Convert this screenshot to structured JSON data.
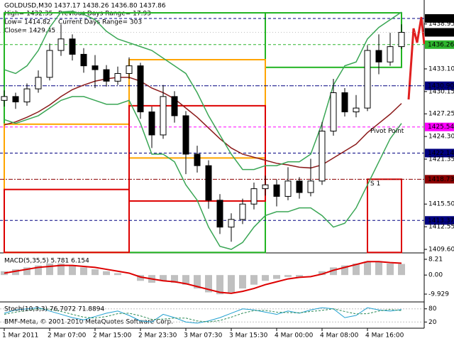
{
  "header": {
    "lines": [
      "GOLDUSD,M30 1437.17 1438.26 1436.80 1437.86",
      "High= 1432.35",
      "Previous Days Range= 17.93",
      "Low= 1414.82",
      "Current Days Range= 303",
      "Close= 1429.45"
    ],
    "copyright": "BMF-Meta, © 2001-2010 MetaQuotes Software Corp."
  },
  "chart_data": [
    {
      "type": "candlestick",
      "categories": [
        "1 Mar 2011",
        null,
        null,
        null,
        "2 Mar 07:00",
        null,
        null,
        null,
        "2 Mar 15:00",
        null,
        null,
        null,
        "2 Mar 23:30",
        null,
        null,
        null,
        "3 Mar 07:30",
        null,
        null,
        null,
        "3 Mar 15:30",
        null,
        null,
        null,
        "4 Mar 00:00",
        null,
        null,
        null,
        "4 Mar 08:00",
        null,
        null,
        null,
        "4 Mar 16:00",
        null,
        null,
        null
      ],
      "open": [
        1429.0,
        1429.5,
        1428.8,
        1430.5,
        1432.0,
        1435.5,
        1437.0,
        1435.0,
        1433.5,
        1433.0,
        1431.5,
        1432.5,
        1433.5,
        1427.5,
        1424.5,
        1429.5,
        1427.0,
        1422.0,
        1420.5,
        1416.0,
        1412.5,
        1413.5,
        1415.5,
        1417.5,
        1418.0,
        1416.5,
        1418.5,
        1417.0,
        1418.5,
        1425.0,
        1430.0,
        1427.5,
        1428.0,
        1435.5,
        1434.0,
        1436.0
      ],
      "high": [
        1430.3,
        1430.0,
        1431.2,
        1432.9,
        1436.4,
        1438.9,
        1437.6,
        1435.8,
        1434.9,
        1433.6,
        1433.4,
        1434.6,
        1433.9,
        1428.2,
        1431.0,
        1430.2,
        1427.6,
        1423.1,
        1421.2,
        1416.8,
        1414.3,
        1416.2,
        1418.3,
        1419.2,
        1418.7,
        1420.3,
        1419.0,
        1421.4,
        1426.2,
        1431.8,
        1430.6,
        1429.7,
        1436.2,
        1437.6,
        1437.8,
        1438.9
      ],
      "low": [
        1428.2,
        1427.9,
        1428.3,
        1430.0,
        1431.6,
        1434.8,
        1434.2,
        1432.6,
        1430.6,
        1430.8,
        1431.0,
        1431.8,
        1426.6,
        1422.8,
        1424.0,
        1426.1,
        1419.4,
        1419.6,
        1414.9,
        1411.6,
        1410.6,
        1412.9,
        1414.8,
        1416.6,
        1415.2,
        1416.0,
        1416.2,
        1416.5,
        1418.0,
        1424.4,
        1426.9,
        1426.8,
        1427.6,
        1432.4,
        1433.5,
        1435.7
      ],
      "close": [
        1429.5,
        1428.8,
        1430.5,
        1432.0,
        1435.5,
        1437.0,
        1435.0,
        1433.5,
        1433.0,
        1431.5,
        1432.5,
        1433.5,
        1427.5,
        1424.5,
        1429.5,
        1427.0,
        1422.0,
        1420.5,
        1416.0,
        1412.5,
        1413.5,
        1415.5,
        1417.5,
        1418.0,
        1416.5,
        1418.5,
        1417.0,
        1418.5,
        1425.0,
        1430.0,
        1427.5,
        1428.0,
        1435.5,
        1434.0,
        1436.0,
        1437.86
      ],
      "overlays": [
        {
          "color": "#8b1a1a",
          "values": [
            1425.8,
            1426.2,
            1426.8,
            1427.5,
            1428.4,
            1429.5,
            1430.4,
            1431.0,
            1431.5,
            1431.8,
            1432.0,
            1432.0,
            1431.5,
            1430.6,
            1430.0,
            1429.2,
            1428.0,
            1426.8,
            1425.4,
            1424.0,
            1422.8,
            1422.0,
            1421.6,
            1421.2,
            1420.8,
            1420.6,
            1420.3,
            1420.2,
            1420.6,
            1421.5,
            1422.4,
            1423.3,
            1424.8,
            1426.0,
            1427.2,
            1428.6
          ]
        },
        {
          "color": "#3aa655",
          "values": [
            1433,
            1432.5,
            1433.5,
            1435.5,
            1438.5,
            1440.5,
            1440.6,
            1440.2,
            1439.5,
            1438,
            1437,
            1436.5,
            1436,
            1435.5,
            1434.5,
            1433.5,
            1432.5,
            1430,
            1427,
            1424.5,
            1422,
            1420,
            1420,
            1420.5,
            1420.5,
            1421,
            1421,
            1422,
            1426,
            1431,
            1433.5,
            1434,
            1437,
            1438.5,
            1439.5,
            1440.5
          ]
        },
        {
          "color": "#3aa655",
          "values": [
            1426.5,
            1426,
            1426.5,
            1427,
            1428,
            1429,
            1429.5,
            1429.5,
            1429,
            1428.5,
            1428.5,
            1429,
            1426,
            1422,
            1422,
            1421,
            1418,
            1416,
            1412.5,
            1410,
            1409.6,
            1410.5,
            1412.5,
            1414,
            1414.5,
            1414.5,
            1415,
            1415,
            1414,
            1412.5,
            1413,
            1415,
            1418,
            1421,
            1424,
            1426
          ]
        }
      ],
      "boxes": [
        {
          "color": "#22b422",
          "start": 0,
          "end": 23,
          "high": 1440.4,
          "low": 1409.2
        },
        {
          "color": "#22b422",
          "start": 23,
          "end": 35,
          "high": 1440.4,
          "low": 1433.3
        },
        {
          "color": "#ffa500",
          "start": 0,
          "end": 11,
          "high": 1425.9,
          "low": 1409.2
        },
        {
          "color": "#ffa500",
          "start": 11,
          "end": 23,
          "high": 1434.3,
          "low": 1421.5
        },
        {
          "color": "#dd0000",
          "start": 0,
          "end": 11,
          "high": 1417.4,
          "low": 1409.2
        },
        {
          "color": "#dd0000",
          "start": 11,
          "end": 23,
          "high": 1428.3,
          "low": 1415.9
        },
        {
          "color": "#dd0000",
          "start": 32,
          "end": 35,
          "high": 1418.73,
          "low": 1409.2
        }
      ],
      "levels": [
        {
          "value": 1439.67,
          "color": "#000000",
          "text_color": "#ffffff",
          "line": "#000080",
          "dash": "4 3"
        },
        {
          "value": 1437.86,
          "color": "#000000",
          "text_color": "#ffffff",
          "line": "#c0c0c0",
          "dash": "1 3"
        },
        {
          "value": 1436.26,
          "color": "#2db52d",
          "text_color": "#000000",
          "line": "#2db52d",
          "dash": "4 3"
        },
        {
          "value": 1430.9,
          "label": "1430.90",
          "color": "#000080",
          "text_color": "#ffffff",
          "line": "#000080",
          "dash": "6 2 2 2"
        },
        {
          "value": 1425.54,
          "color": "#ff00ff",
          "text_color": "#ffffff",
          "line": "#ff00ff",
          "dash": "4 3",
          "annotation": "Pivot Point",
          "annotation_color": "#e0a040"
        },
        {
          "value": 1422.14,
          "color": "#000080",
          "text_color": "#ffffff",
          "line": "#000080",
          "dash": "4 3"
        },
        {
          "value": 1418.73,
          "color": "#8b0000",
          "text_color": "#ffffff",
          "line": "#8b0000",
          "dash": "6 2 2 2",
          "annotation": "S 1",
          "annotation_color": "#e0a040"
        },
        {
          "value": 1413.37,
          "color": "#000080",
          "text_color": "#ffffff",
          "line": "#000080",
          "dash": "4 3"
        }
      ],
      "ylim": [
        1409.14,
        1442.07
      ],
      "yticks": [
        1438.95,
        {
          "value": 1433.1,
          "label": "1433.10"
        },
        1430.15,
        1427.25,
        {
          "value": 1424.3,
          "label": "1424.30"
        },
        1421.35,
        {
          "value": 1415.5,
          "label": "1415.50"
        },
        1412.55,
        {
          "value": 1409.6,
          "label": "1409.60"
        }
      ]
    },
    {
      "type": "bar",
      "title": "MACD(5,35,5) 5.781 6.154",
      "color": "#c0c0c0",
      "signal_color": "#dd0000",
      "values": [
        2,
        3,
        4,
        5,
        6,
        6,
        5,
        4,
        3,
        2,
        1,
        0,
        -3,
        -4,
        -3,
        -4,
        -5,
        -7,
        -9,
        -10,
        -9,
        -7,
        -5,
        -3,
        -2,
        -1,
        -1,
        0,
        2,
        4,
        5,
        6,
        7,
        7,
        6,
        5.781
      ],
      "signal": [
        1,
        2,
        3,
        4,
        4.5,
        5,
        5,
        4.5,
        4,
        3,
        2,
        1,
        -1,
        -2,
        -3,
        -3.5,
        -4.5,
        -6,
        -7.5,
        -9,
        -9.5,
        -8.5,
        -7,
        -5,
        -3.5,
        -2,
        -1.2,
        -0.8,
        0.5,
        2.5,
        4,
        5.5,
        7,
        7,
        6.5,
        6.154
      ],
      "ylim": [
        -14.0,
        11.17
      ],
      "yticks": [
        8.21,
        {
          "value": 0,
          "label": "0.00"
        },
        -9.929
      ]
    },
    {
      "type": "line",
      "title": "Stoch(10,3,3) 76.7072 71.8894",
      "series": [
        {
          "color": "#20a0d0",
          "dash": "",
          "values": [
            60,
            75,
            80,
            85,
            70,
            55,
            40,
            30,
            45,
            60,
            70,
            50,
            25,
            20,
            55,
            40,
            20,
            15,
            25,
            40,
            60,
            80,
            75,
            65,
            55,
            70,
            60,
            75,
            85,
            80,
            40,
            50,
            85,
            75,
            70,
            76.7072
          ]
        },
        {
          "color": "#2e8b57",
          "dash": "3 2",
          "values": [
            55,
            65,
            72,
            80,
            78,
            68,
            55,
            42,
            38,
            45,
            58,
            60,
            48,
            32,
            33,
            38,
            38,
            25,
            20,
            27,
            42,
            60,
            72,
            73,
            65,
            63,
            62,
            68,
            73,
            80,
            68,
            57,
            58,
            70,
            77,
            71.8894
          ]
        }
      ],
      "ylim": [
        -5,
        105
      ],
      "yticks": [
        80,
        20
      ]
    }
  ]
}
